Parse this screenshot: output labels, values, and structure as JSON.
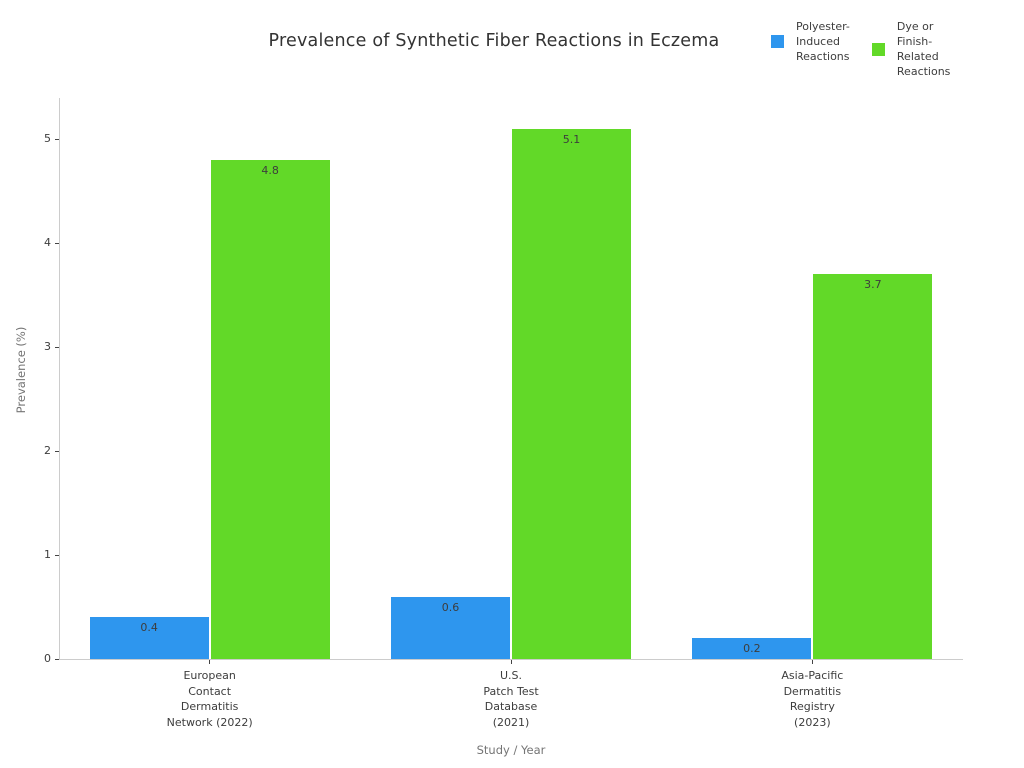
{
  "chart_data": {
    "type": "bar",
    "title": "Prevalence of Synthetic Fiber Reactions in Eczema",
    "xlabel": "Study / Year",
    "ylabel": "Prevalence (%)",
    "categories": [
      "European\nContact\nDermatitis\nNetwork (2022)",
      "U.S.\nPatch Test\nDatabase\n(2021)",
      "Asia-Pacific\nDermatitis\nRegistry\n(2023)"
    ],
    "series": [
      {
        "name": "Polyester-\nInduced\nReactions",
        "color": "#2e96ee",
        "values": [
          0.4,
          0.6,
          0.2
        ]
      },
      {
        "name": "Dye or\nFinish-\nRelated\nReactions",
        "color": "#62d928",
        "values": [
          4.8,
          5.1,
          3.7
        ]
      }
    ],
    "yticks": [
      0,
      1,
      2,
      3,
      4,
      5
    ],
    "ylim": [
      0,
      5.4
    ],
    "grid": false,
    "legend_position": "top-right",
    "value_labels_shown": true
  },
  "appearance": {
    "background": "#ffffff",
    "spine_color": "#cccccc",
    "tick_mark_color": "#444444",
    "tick_label_color": "#3d3d3d",
    "axis_title_color": "#757575",
    "title_color": "#333333",
    "value_label_color": "#3d3d3d"
  }
}
